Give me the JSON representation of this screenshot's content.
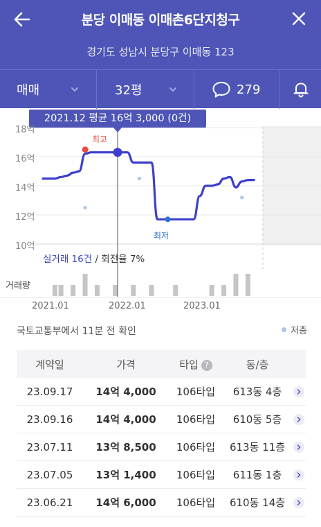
{
  "header": {
    "title": "분당 이매동 이매촌6단지청구",
    "address": "경기도 성남시 분당구 이매동 123"
  },
  "toolbar": {
    "deal_type": "매매",
    "area": "32평",
    "comment_count": "279"
  },
  "tooltip": "2021.12 평균 16억 3,000 (0건)",
  "chart": {
    "high_label": "최고",
    "low_label": "최저",
    "y_ticks": [
      "18억",
      "16억",
      "14억",
      "12억",
      "10억"
    ],
    "x_ticks": [
      "2021.01",
      "2022.01",
      "2023.01"
    ],
    "tx_info_highlight": "실거래 16건",
    "tx_info_rest": " / 회전율 7%",
    "volume_label": "거래량"
  },
  "chart_data": {
    "type": "line",
    "ylabel": "",
    "xlabel": "",
    "ylim": [
      10,
      18
    ],
    "y_unit": "억",
    "x_range": [
      "2020.10",
      "2024.01"
    ],
    "series": [
      {
        "x": [
          "2020.10",
          "2020.12",
          "2021.01",
          "2021.02",
          "2021.03",
          "2021.04",
          "2021.05",
          "2021.06",
          "2021.07",
          "2021.08",
          "2021.09",
          "2021.10",
          "2021.11",
          "2021.12",
          "2022.01",
          "2022.02",
          "2022.03",
          "2022.04",
          "2022.05",
          "2022.06",
          "2022.07",
          "2022.08",
          "2022.09",
          "2022.10",
          "2022.11",
          "2022.12",
          "2023.01",
          "2023.02",
          "2023.03",
          "2023.04",
          "2023.05",
          "2023.06",
          "2023.07",
          "2023.08",
          "2023.09"
        ],
        "values": [
          14.5,
          14.5,
          14.6,
          14.7,
          14.9,
          15.0,
          16.2,
          16.3,
          16.3,
          16.3,
          16.3,
          16.3,
          16.3,
          16.3,
          15.6,
          15.6,
          15.6,
          15.6,
          11.7,
          11.7,
          11.7,
          11.7,
          11.7,
          11.7,
          11.7,
          13.3,
          14.0,
          14.0,
          14.1,
          14.5,
          14.6,
          13.9,
          14.3,
          14.4,
          14.4
        ]
      }
    ],
    "highlight": {
      "x": "2021.12",
      "value": 16.3
    },
    "high_point": {
      "x": "2021.08",
      "value": 16.3
    },
    "low_point": {
      "x": "2022.09",
      "value": 11.7
    },
    "low_floor_points": [
      {
        "x": "2021.05",
        "value": 12.5
      },
      {
        "x": "2022.02",
        "value": 14.5
      },
      {
        "x": "2023.07",
        "value": 13.2
      }
    ],
    "volume": [
      {
        "x": "2020.12",
        "value": 1
      },
      {
        "x": "2021.01",
        "value": 1
      },
      {
        "x": "2021.03",
        "value": 1
      },
      {
        "x": "2021.05",
        "value": 2
      },
      {
        "x": "2021.07",
        "value": 1
      },
      {
        "x": "2021.10",
        "value": 1
      },
      {
        "x": "2022.01",
        "value": 1
      },
      {
        "x": "2022.04",
        "value": 1
      },
      {
        "x": "2022.08",
        "value": 1
      },
      {
        "x": "2023.02",
        "value": 1
      },
      {
        "x": "2023.04",
        "value": 1
      },
      {
        "x": "2023.06",
        "value": 2
      },
      {
        "x": "2023.08",
        "value": 2
      }
    ]
  },
  "source": "국토교통부에서 11분 전 확인",
  "legend": {
    "low_floor": "저층"
  },
  "colors": {
    "header_bg": "#4e55b6",
    "line": "#3d3fcc",
    "high": "#ef4b3d",
    "low": "#2f6fd6",
    "low_floor_dot": "#a9c7ea",
    "volume_bar": "#c6c6c6"
  },
  "table": {
    "headers": [
      "계약일",
      "가격",
      "타입",
      "동/층"
    ],
    "rows": [
      {
        "date": "23.09.17",
        "price": "14억 4,000",
        "type": "106타입",
        "unit": "613동 4층"
      },
      {
        "date": "23.09.16",
        "price": "14억 4,000",
        "type": "106타입",
        "unit": "610동 5층"
      },
      {
        "date": "23.07.11",
        "price": "13억 8,500",
        "type": "106타입",
        "unit": "613동 11층"
      },
      {
        "date": "23.07.05",
        "price": "13억 1,400",
        "type": "106타입",
        "unit": "611동 1층"
      },
      {
        "date": "23.06.21",
        "price": "14억 6,000",
        "type": "106타입",
        "unit": "610동 14층"
      }
    ]
  }
}
